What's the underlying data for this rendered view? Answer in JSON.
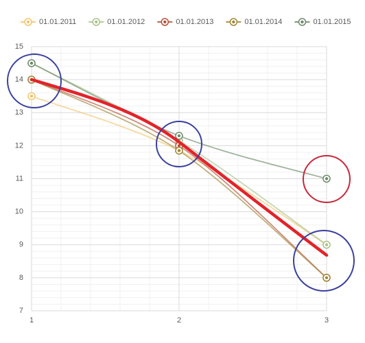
{
  "chart_data": {
    "type": "line",
    "series": [
      {
        "name": "01.01.2011",
        "color": "#f2c46d",
        "x": [
          1,
          2,
          3
        ],
        "values": [
          13.5,
          11.85,
          9
        ]
      },
      {
        "name": "01.01.2012",
        "color": "#a9c28a",
        "x": [
          1,
          2,
          3
        ],
        "values": [
          14.5,
          12.15,
          9
        ]
      },
      {
        "name": "01.01.2013",
        "color": "#b5513a",
        "x": [
          1,
          2,
          3
        ],
        "values": [
          14,
          12,
          8
        ]
      },
      {
        "name": "01.01.2014",
        "color": "#a08636",
        "x": [
          1,
          2,
          3
        ],
        "values": [
          14,
          11.85,
          8
        ]
      },
      {
        "name": "01.01.2015",
        "color": "#6d8a6a",
        "x": [
          1,
          2,
          3
        ],
        "values": [
          14.5,
          12.3,
          11
        ]
      }
    ],
    "xlim": [
      1,
      3
    ],
    "xticks": [
      1,
      2,
      3
    ],
    "ylim": [
      7,
      15
    ],
    "yticks": [
      7,
      8,
      9,
      10,
      11,
      12,
      13,
      14,
      15
    ],
    "grid": true,
    "legend": "top"
  }
}
